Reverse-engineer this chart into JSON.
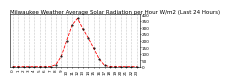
{
  "title": "Milwaukee Weather Average Solar Radiation per Hour W/m2 (Last 24 Hours)",
  "hours": [
    0,
    1,
    2,
    3,
    4,
    5,
    6,
    7,
    8,
    9,
    10,
    11,
    12,
    13,
    14,
    15,
    16,
    17,
    18,
    19,
    20,
    21,
    22,
    23
  ],
  "values": [
    0,
    0,
    0,
    0,
    0,
    0,
    0,
    1,
    15,
    80,
    200,
    320,
    370,
    290,
    220,
    140,
    60,
    10,
    1,
    0,
    0,
    0,
    0,
    0
  ],
  "line_color": "red",
  "line_style": "--",
  "marker": ".",
  "marker_color": "black",
  "background_color": "#ffffff",
  "grid_color": "#999999",
  "grid_style": ":",
  "ylim": [
    0,
    400
  ],
  "yticks": [
    0,
    50,
    100,
    150,
    200,
    250,
    300,
    350,
    400
  ],
  "title_fontsize": 4.0,
  "tick_fontsize": 3.0,
  "linewidth": 0.6,
  "markersize": 1.0
}
